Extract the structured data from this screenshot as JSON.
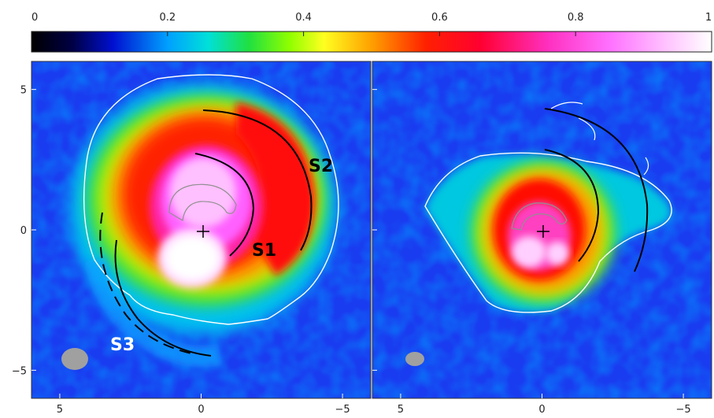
{
  "colorbar": {
    "ticks": [
      {
        "value": 0,
        "label": "0"
      },
      {
        "value": 0.2,
        "label": "0.2"
      },
      {
        "value": 0.4,
        "label": "0.4"
      },
      {
        "value": 0.6,
        "label": "0.6"
      },
      {
        "value": 0.8,
        "label": "0.8"
      },
      {
        "value": 1,
        "label": "1"
      }
    ],
    "stops": [
      {
        "v": 0.0,
        "c": "#000000"
      },
      {
        "v": 0.06,
        "c": "#000044"
      },
      {
        "v": 0.12,
        "c": "#0010d0"
      },
      {
        "v": 0.2,
        "c": "#00a0ff"
      },
      {
        "v": 0.26,
        "c": "#00e0d8"
      },
      {
        "v": 0.32,
        "c": "#20e040"
      },
      {
        "v": 0.38,
        "c": "#90ff00"
      },
      {
        "v": 0.43,
        "c": "#ffff20"
      },
      {
        "v": 0.5,
        "c": "#ffa000"
      },
      {
        "v": 0.58,
        "c": "#ff2000"
      },
      {
        "v": 0.66,
        "c": "#ff0030"
      },
      {
        "v": 0.76,
        "c": "#ff30c0"
      },
      {
        "v": 0.85,
        "c": "#ff70ff"
      },
      {
        "v": 0.93,
        "c": "#ffc0ff"
      },
      {
        "v": 1.0,
        "c": "#ffffff"
      }
    ]
  },
  "axes": {
    "xlim": [
      6,
      -6
    ],
    "ylim": [
      -6,
      6
    ],
    "y_ticks": [
      {
        "value": 5,
        "label": "5"
      },
      {
        "value": 0,
        "label": "0"
      },
      {
        "value": -5,
        "label": "−5"
      }
    ],
    "x_ticks": [
      {
        "value": 5,
        "label": "5"
      },
      {
        "value": 0,
        "label": "0"
      },
      {
        "value": -5,
        "label": "−5"
      }
    ]
  },
  "panels": [
    {
      "id": "left",
      "labels": [
        "S1",
        "S2",
        "S3"
      ]
    },
    {
      "id": "right",
      "labels": []
    }
  ],
  "labels": {
    "s1": "S1",
    "s2": "S2",
    "s3": "S3"
  },
  "colors": {
    "background_blue": "#1a3cf0",
    "contour": "#ffffff",
    "beam": "#a0a0a0",
    "arc": "#000000"
  }
}
